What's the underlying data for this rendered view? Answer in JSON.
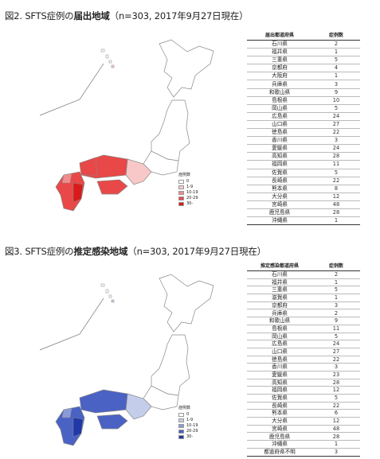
{
  "figure1": {
    "title_prefix": "図2.  SFTS症例の",
    "title_bold": "届出地域",
    "title_suffix": "（n=303, 2017年9月27日現在）",
    "table_header_region": "届出都道府県",
    "table_header_count": "症例数",
    "rows": [
      {
        "pref": "石川県",
        "count": "2"
      },
      {
        "pref": "福井県",
        "count": "1"
      },
      {
        "pref": "三重県",
        "count": "5"
      },
      {
        "pref": "京都府",
        "count": "4"
      },
      {
        "pref": "大阪府",
        "count": "1"
      },
      {
        "pref": "兵庫県",
        "count": "3"
      },
      {
        "pref": "和歌山県",
        "count": "9"
      },
      {
        "pref": "島根県",
        "count": "10"
      },
      {
        "pref": "岡山県",
        "count": "5"
      },
      {
        "pref": "広島県",
        "count": "24"
      },
      {
        "pref": "山口県",
        "count": "27"
      },
      {
        "pref": "徳島県",
        "count": "22"
      },
      {
        "pref": "香川県",
        "count": "3"
      },
      {
        "pref": "愛媛県",
        "count": "24"
      },
      {
        "pref": "高知県",
        "count": "28"
      },
      {
        "pref": "福岡県",
        "count": "11"
      },
      {
        "pref": "佐賀県",
        "count": "5"
      },
      {
        "pref": "長崎県",
        "count": "22"
      },
      {
        "pref": "熊本県",
        "count": "8"
      },
      {
        "pref": "大分県",
        "count": "12"
      },
      {
        "pref": "宮崎県",
        "count": "48"
      },
      {
        "pref": "鹿児島県",
        "count": "28"
      },
      {
        "pref": "沖縄県",
        "count": "1"
      }
    ],
    "legend": {
      "title": "症例数",
      "bins": [
        {
          "label": "0",
          "color": "#ffffff"
        },
        {
          "label": "1-9",
          "color": "#f8c8c8"
        },
        {
          "label": "10-19",
          "color": "#f08c8c"
        },
        {
          "label": "20-29",
          "color": "#e84848"
        },
        {
          "label": "30-",
          "color": "#d81a1a"
        }
      ]
    }
  },
  "figure2": {
    "title_prefix": "図3.  SFTS症例の",
    "title_bold": "推定感染地域",
    "title_suffix": "（n=303, 2017年9月27日現在）",
    "table_header_region": "推定感染都道府県",
    "table_header_count": "症例数",
    "rows": [
      {
        "pref": "石川県",
        "count": "2"
      },
      {
        "pref": "福井県",
        "count": "1"
      },
      {
        "pref": "三重県",
        "count": "5"
      },
      {
        "pref": "滋賀県",
        "count": "1"
      },
      {
        "pref": "京都府",
        "count": "3"
      },
      {
        "pref": "兵庫県",
        "count": "2"
      },
      {
        "pref": "和歌山県",
        "count": "9"
      },
      {
        "pref": "島根県",
        "count": "11"
      },
      {
        "pref": "岡山県",
        "count": "5"
      },
      {
        "pref": "広島県",
        "count": "24"
      },
      {
        "pref": "山口県",
        "count": "27"
      },
      {
        "pref": "徳島県",
        "count": "22"
      },
      {
        "pref": "香川県",
        "count": "3"
      },
      {
        "pref": "愛媛県",
        "count": "23"
      },
      {
        "pref": "高知県",
        "count": "28"
      },
      {
        "pref": "福岡県",
        "count": "12"
      },
      {
        "pref": "佐賀県",
        "count": "5"
      },
      {
        "pref": "長崎県",
        "count": "22"
      },
      {
        "pref": "熊本県",
        "count": "6"
      },
      {
        "pref": "大分県",
        "count": "12"
      },
      {
        "pref": "宮崎県",
        "count": "48"
      },
      {
        "pref": "鹿児島県",
        "count": "28"
      },
      {
        "pref": "沖縄県",
        "count": "1"
      },
      {
        "pref": "都道府県不明",
        "count": "3"
      }
    ],
    "legend": {
      "title": "症例数",
      "bins": [
        {
          "label": "0",
          "color": "#ffffff"
        },
        {
          "label": "1-9",
          "color": "#c4cdea"
        },
        {
          "label": "10-19",
          "color": "#8a9cd8"
        },
        {
          "label": "20-29",
          "color": "#4a62c4"
        },
        {
          "label": "30-",
          "color": "#2038a8"
        }
      ]
    }
  }
}
